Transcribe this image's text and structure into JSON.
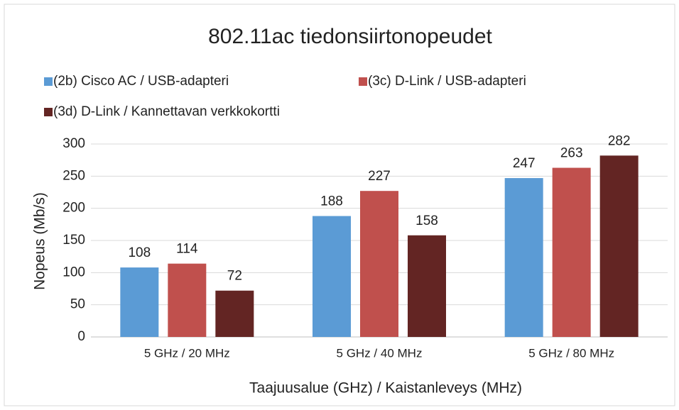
{
  "chart_data": {
    "type": "bar",
    "title": "802.11ac tiedonsiirtonopeudet",
    "x_label": "Taajuusalue (GHz) / Kaistanleveys (MHz)",
    "y_label": "Nopeus (Mb/s)",
    "categories": [
      "5 GHz / 20 MHz",
      "5 GHz / 40 MHz",
      "5 GHz / 80 MHz"
    ],
    "series": [
      {
        "name": "(2b) Cisco AC / USB-adapteri",
        "color": "#5b9bd5",
        "values": [
          108,
          188,
          247
        ]
      },
      {
        "name": "(3c) D-Link / USB-adapteri",
        "color": "#c0504d",
        "values": [
          114,
          227,
          263
        ]
      },
      {
        "name": "(3d) D-Link / Kannettavan verkkokortti",
        "color": "#632523",
        "values": [
          72,
          158,
          282
        ]
      }
    ],
    "ylim": [
      0,
      300
    ],
    "yticks": [
      0,
      50,
      100,
      150,
      200,
      250,
      300
    ],
    "grid": true,
    "legend": "top"
  }
}
